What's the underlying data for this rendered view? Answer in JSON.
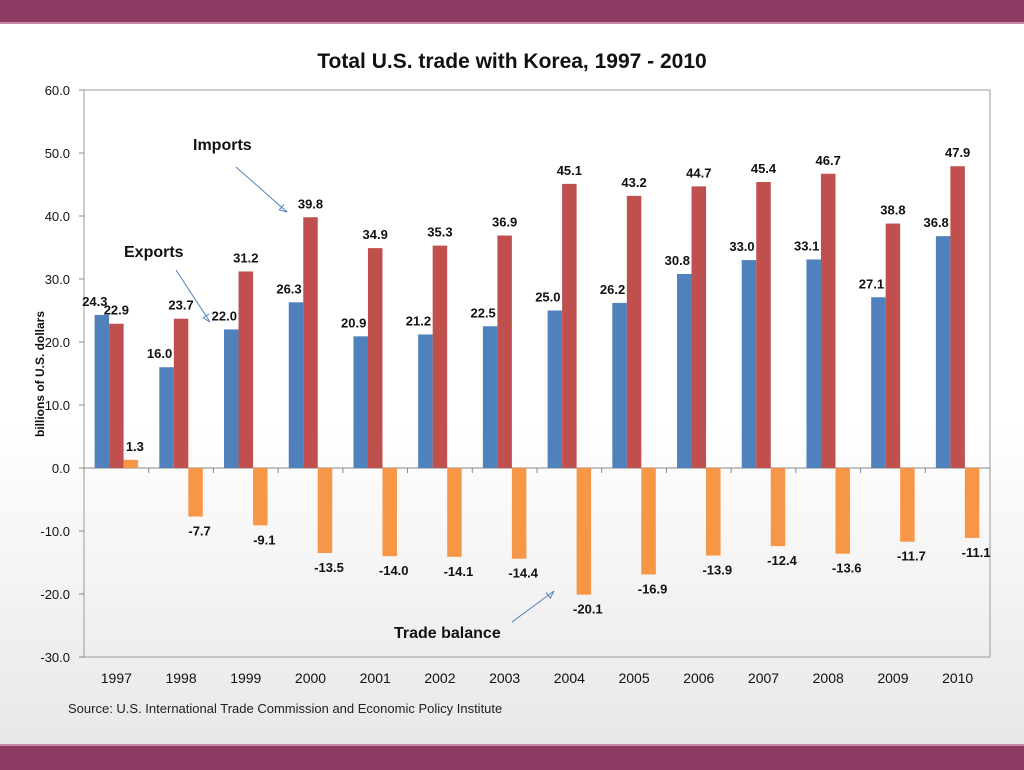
{
  "colors": {
    "band": "#8b3a62",
    "exports": "#4f81bd",
    "imports": "#c0504d",
    "balance": "#f79646",
    "arrow": "#4f81bd"
  },
  "source": "Source:  U.S. International Trade Commission and Economic Policy Institute",
  "chart_data": {
    "type": "bar",
    "title": "Total U.S. trade with Korea, 1997 - 2010",
    "xlabel": "",
    "ylabel": "billions of U.S. dollars",
    "ylim": [
      -30,
      60
    ],
    "yticks": [
      -30,
      -20,
      -10,
      0,
      10,
      20,
      30,
      40,
      50,
      60
    ],
    "ytick_labels": [
      "-30.0",
      "-20.0",
      "-10.0",
      "0.0",
      "10.0",
      "20.0",
      "30.0",
      "40.0",
      "50.0",
      "60.0"
    ],
    "grid": false,
    "legend": "none",
    "categories": [
      "1997",
      "1998",
      "1999",
      "2000",
      "2001",
      "2002",
      "2003",
      "2004",
      "2005",
      "2006",
      "2007",
      "2008",
      "2009",
      "2010"
    ],
    "series": [
      {
        "name": "Exports",
        "values": [
          24.3,
          16.0,
          22.0,
          26.3,
          20.9,
          21.2,
          22.5,
          25.0,
          26.2,
          30.8,
          33.0,
          33.1,
          27.1,
          36.8
        ],
        "labels": [
          "24.3",
          "16.0",
          "22.0",
          "26.3",
          "20.9",
          "21.2",
          "22.5",
          "25.0",
          "26.2",
          "30.8",
          "33.0",
          "33.1",
          "27.1",
          "36.8"
        ]
      },
      {
        "name": "Imports",
        "values": [
          22.9,
          23.7,
          31.2,
          39.8,
          34.9,
          35.3,
          36.9,
          45.1,
          43.2,
          44.7,
          45.4,
          46.7,
          38.8,
          47.9
        ],
        "labels": [
          "22.9",
          "23.7",
          "31.2",
          "39.8",
          "34.9",
          "35.3",
          "36.9",
          "45.1",
          "43.2",
          "44.7",
          "45.4",
          "46.7",
          "38.8",
          "47.9"
        ]
      },
      {
        "name": "Trade balance",
        "values": [
          1.3,
          -7.7,
          -9.1,
          -13.5,
          -14.0,
          -14.1,
          -14.4,
          -20.1,
          -16.9,
          -13.9,
          -12.4,
          -13.6,
          -11.7,
          -11.1
        ],
        "labels": [
          "1.3",
          "-7.7",
          "-9.1",
          "-13.5",
          "-14.0",
          "-14.1",
          "-14.4",
          "-20.1",
          "-16.9",
          "-13.9",
          "-12.4",
          "-13.6",
          "-11.7",
          "-11.1"
        ]
      }
    ],
    "annotations": [
      "Imports",
      "Exports",
      "Trade balance"
    ]
  }
}
